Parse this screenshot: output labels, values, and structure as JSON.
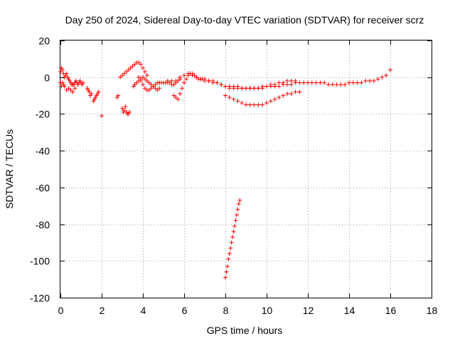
{
  "chart_data": {
    "type": "scatter",
    "title": "Day 250 of 2024, Sidereal Day-to-day VTEC variation (SDTVAR) for receiver scrz",
    "xlabel": "GPS time / hours",
    "ylabel": "SDTVAR / TECUs",
    "xlim": [
      0,
      18
    ],
    "ylim": [
      -120,
      20
    ],
    "xticks": [
      0,
      2,
      4,
      6,
      8,
      10,
      12,
      14,
      16,
      18
    ],
    "yticks": [
      20,
      0,
      -20,
      -40,
      -60,
      -80,
      -100,
      -120
    ],
    "grid": true,
    "marker": "+",
    "color": "#ff0000",
    "series": [
      {
        "name": "SDTVAR",
        "x": [
          0.0,
          0.05,
          0.1,
          0.15,
          0.2,
          0.25,
          0.3,
          0.35,
          0.4,
          0.45,
          0.5,
          0.55,
          0.6,
          0.65,
          0.7,
          0.75,
          0.8,
          0.85,
          0.9,
          0.95,
          1.0,
          1.05,
          1.1,
          0.0,
          0.05,
          0.1,
          0.15,
          0.2,
          0.3,
          0.4,
          0.5,
          0.6,
          0.7,
          1.3,
          1.35,
          1.4,
          1.45,
          1.5,
          1.6,
          1.65,
          1.7,
          1.75,
          1.8,
          1.85,
          2.0,
          2.75,
          2.8,
          3.0,
          3.05,
          3.1,
          3.15,
          3.2,
          3.25,
          3.3,
          3.35,
          2.9,
          3.0,
          3.1,
          3.2,
          3.3,
          3.4,
          3.5,
          3.6,
          3.7,
          3.8,
          3.9,
          4.0,
          4.1,
          4.2,
          3.55,
          3.6,
          3.7,
          3.8,
          3.9,
          4.0,
          4.1,
          4.2,
          4.3,
          4.4,
          4.5,
          4.6,
          4.7,
          4.8,
          3.8,
          3.9,
          4.0,
          4.1,
          4.2,
          4.3,
          4.4,
          4.5,
          4.6,
          4.7,
          4.8,
          4.9,
          5.0,
          5.1,
          5.2,
          5.3,
          5.4,
          5.5,
          5.6,
          5.7,
          5.8,
          4.8,
          5.0,
          5.2,
          5.4,
          5.6,
          5.8,
          6.0,
          6.2,
          6.4,
          6.6,
          6.8,
          7.0,
          7.2,
          7.4,
          7.6,
          7.8,
          8.0,
          8.2,
          8.4,
          8.6,
          8.8,
          9.0,
          9.2,
          9.4,
          9.6,
          9.8,
          10.0,
          10.2,
          10.4,
          10.6,
          10.8,
          11.0,
          11.2,
          11.4,
          11.6,
          11.8,
          12.0,
          12.2,
          12.4,
          12.6,
          12.8,
          13.0,
          13.2,
          13.4,
          13.6,
          13.8,
          14.0,
          14.2,
          14.4,
          14.6,
          14.8,
          15.0,
          15.2,
          15.4,
          15.6,
          15.8,
          16.0,
          5.5,
          5.6,
          5.7,
          5.8,
          5.9,
          6.0,
          6.1,
          6.2,
          6.3,
          6.4,
          6.5,
          6.6,
          6.7,
          6.8,
          6.9,
          7.0,
          7.2,
          7.4,
          7.6,
          7.8,
          8.0,
          8.2,
          8.4,
          8.6,
          8.8,
          9.0,
          9.2,
          9.4,
          9.6,
          9.8,
          10.0,
          10.2,
          10.4,
          10.6,
          10.8,
          11.0,
          11.2,
          11.4,
          8.0,
          8.2,
          8.4,
          8.6,
          8.8,
          9.0,
          9.2,
          9.4,
          9.6,
          9.8,
          10.0,
          10.2,
          10.4,
          10.6,
          10.8,
          11.0,
          11.2,
          11.4,
          11.6,
          8.0,
          8.05,
          8.1,
          8.15,
          8.2,
          8.25,
          8.3,
          8.35,
          8.4,
          8.45,
          8.5,
          8.55,
          8.6,
          8.65,
          8.7
        ],
        "y": [
          3,
          5,
          4,
          2,
          0,
          1,
          2,
          0,
          -1,
          -2,
          -3,
          -4,
          -4,
          -4,
          -3,
          -2,
          -3,
          -4,
          -3,
          -2,
          -3,
          -4,
          -3,
          -3,
          -5,
          -3,
          -4,
          -5,
          -7,
          -6,
          -7,
          -8,
          -6,
          -6,
          -7,
          -8,
          -10,
          -9,
          -13,
          -12,
          -11,
          -10,
          -9,
          -8,
          -21,
          -11,
          -10,
          -17,
          -19,
          -18,
          -16,
          -19,
          -20,
          -20,
          -19,
          0,
          1,
          2,
          3,
          4,
          5,
          6,
          7,
          8,
          8,
          7,
          5,
          3,
          1,
          -5,
          -4,
          -3,
          -2,
          -1,
          0,
          -1,
          -2,
          -3,
          -4,
          -5,
          -6,
          -7,
          -6,
          0,
          -2,
          -4,
          -6,
          -7,
          -7,
          -6,
          -5,
          -4,
          -3,
          -3,
          -3,
          -3,
          -3,
          -2,
          -3,
          -4,
          -4,
          -3,
          -2,
          -1,
          -3,
          -3,
          -3,
          -2,
          -2,
          0,
          1,
          2,
          1,
          0,
          -1,
          -2,
          -2,
          -3,
          -3,
          -4,
          -5,
          -5,
          -5,
          -5,
          -6,
          -6,
          -6,
          -6,
          -6,
          -6,
          -5,
          -5,
          -5,
          -5,
          -4,
          -4,
          -4,
          -3,
          -3,
          -3,
          -3,
          -3,
          -3,
          -3,
          -3,
          -4,
          -4,
          -4,
          -4,
          -4,
          -3,
          -3,
          -3,
          -3,
          -2,
          -2,
          -2,
          -1,
          0,
          1,
          4,
          -10,
          -11,
          -12,
          -9,
          -6,
          -3,
          -1,
          1,
          2,
          2,
          1,
          0,
          -1,
          -1,
          -1,
          -1,
          -2,
          -2,
          -3,
          -4,
          -5,
          -6,
          -6,
          -6,
          -6,
          -6,
          -6,
          -6,
          -6,
          -5,
          -5,
          -4,
          -4,
          -3,
          -3,
          -2,
          -2,
          -2,
          -10,
          -11,
          -12,
          -13,
          -14,
          -15,
          -15,
          -15,
          -15,
          -15,
          -14,
          -13,
          -12,
          -11,
          -10,
          -9,
          -9,
          -8,
          -8,
          -109,
          -106,
          -103,
          -99,
          -96,
          -93,
          -90,
          -87,
          -84,
          -81,
          -78,
          -75,
          -72,
          -69,
          -67
        ]
      }
    ]
  }
}
